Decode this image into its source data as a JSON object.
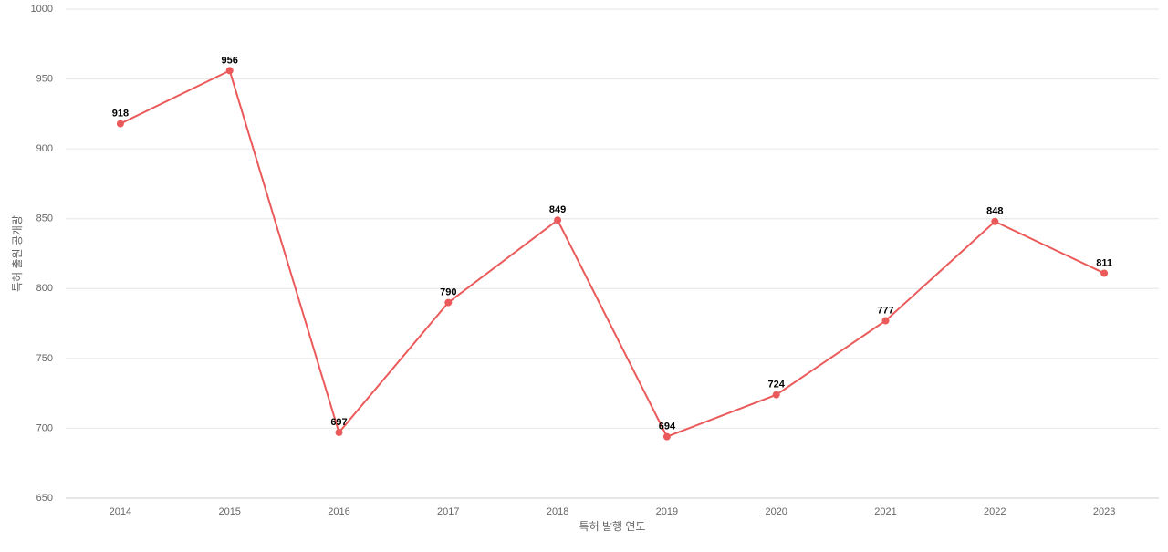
{
  "chart_data": {
    "type": "line",
    "x_label": "특허 발행 연도",
    "y_label": "특허 출원 공개량",
    "categories": [
      "2014",
      "2015",
      "2016",
      "2017",
      "2018",
      "2019",
      "2020",
      "2021",
      "2022",
      "2023"
    ],
    "series": [
      {
        "name": "특허 출원 공개량",
        "color": "#eb5a5a",
        "values": [
          918,
          956,
          697,
          790,
          849,
          694,
          724,
          777,
          848,
          811
        ]
      }
    ],
    "ylim": [
      650,
      1000
    ],
    "yticks": [
      650,
      700,
      750,
      800,
      850,
      900,
      950,
      1000
    ],
    "grid": true
  }
}
